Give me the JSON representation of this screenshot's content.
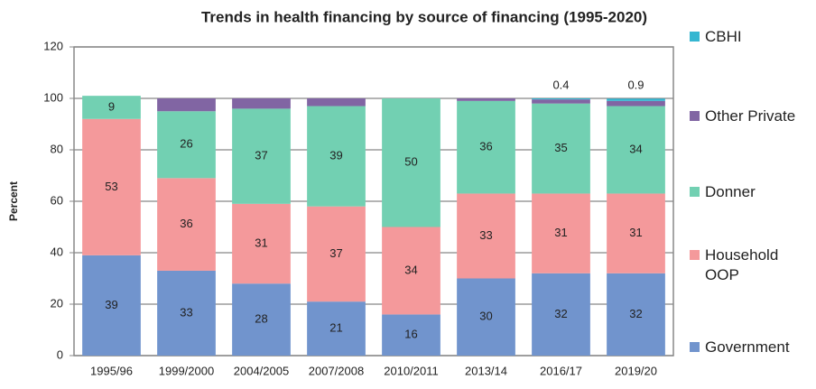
{
  "chart_data": {
    "type": "stacked_bar",
    "title": "Trends in health financing by source of financing (1995-2020)",
    "y_label": "Percent",
    "categories": [
      "1995/96",
      "1999/2000",
      "2004/2005",
      "2007/2008",
      "2010/2011",
      "2013/14",
      "2016/17",
      "2019/20"
    ],
    "series": [
      {
        "name": "Government",
        "color": "#7194cd",
        "data_labels": true,
        "values": [
          39,
          33,
          28,
          21,
          16,
          30,
          32,
          32
        ]
      },
      {
        "name": "Household OOP",
        "color": "#f4999b",
        "data_labels": true,
        "values": [
          53,
          36,
          31,
          37,
          34,
          33,
          31,
          31
        ]
      },
      {
        "name": "Donner",
        "color": "#72d0b2",
        "data_labels": true,
        "values": [
          9,
          26,
          37,
          39,
          50,
          36,
          35,
          34
        ]
      },
      {
        "name": "Other Private",
        "color": "#8165a3",
        "data_labels": false,
        "values": [
          0,
          5,
          4,
          3,
          0,
          1,
          1.6,
          2
        ]
      },
      {
        "name": "CBHI",
        "color": "#35b6d1",
        "data_labels": false,
        "values": [
          0,
          0,
          0,
          0,
          0,
          0,
          0.4,
          0.9
        ],
        "value_labels": [
          null,
          null,
          null,
          null,
          null,
          null,
          "0.4",
          "0.9"
        ]
      }
    ],
    "ylim": [
      0,
      120
    ],
    "yticks": [
      0,
      20,
      40,
      60,
      80,
      100,
      120
    ],
    "grid": true,
    "legend": "right"
  }
}
